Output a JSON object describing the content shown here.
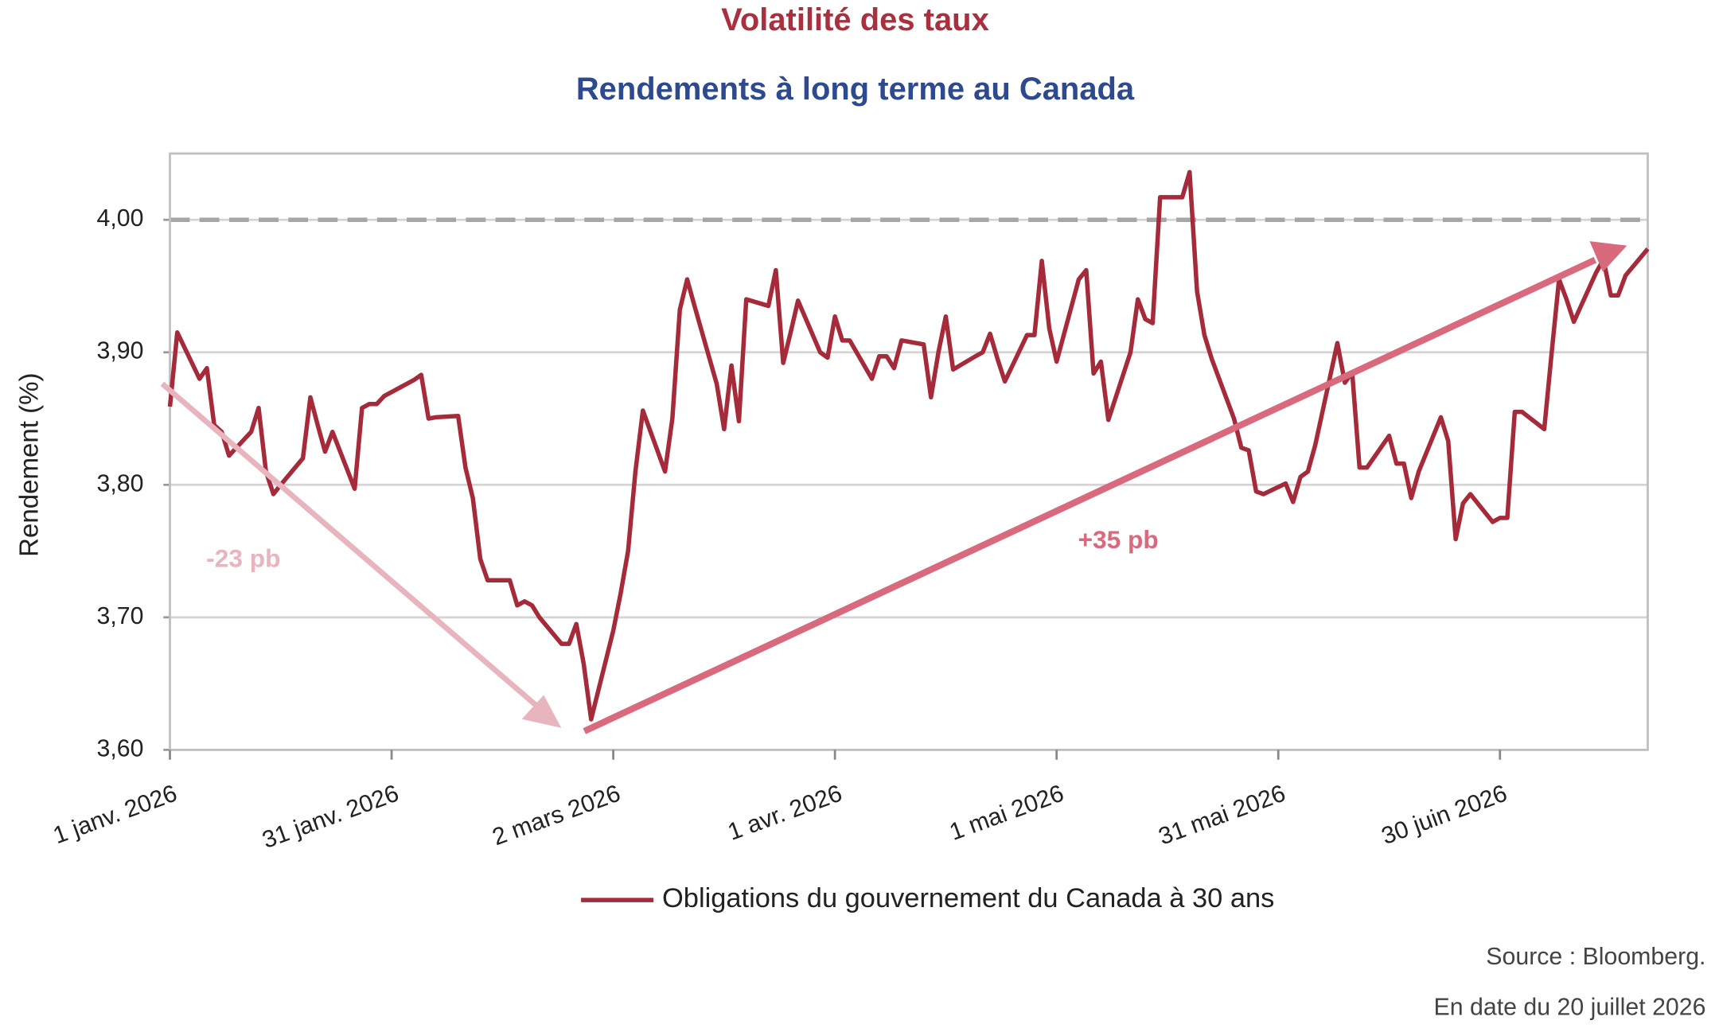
{
  "chart_data": {
    "type": "line",
    "title": "Volatilité des taux",
    "subtitle": "Rendements à long terme au Canada",
    "y_label": "Rendement (%)",
    "xlim": [
      "2026-01-01",
      "2026-07-20"
    ],
    "xticks": [
      {
        "value": "2026-01-01",
        "label": "1 janv. 2026"
      },
      {
        "value": "2026-01-31",
        "label": "31 janv. 2026"
      },
      {
        "value": "2026-03-02",
        "label": "2 mars 2026"
      },
      {
        "value": "2026-04-01",
        "label": "1 avr. 2026"
      },
      {
        "value": "2026-05-01",
        "label": "1 mai 2026"
      },
      {
        "value": "2026-05-31",
        "label": "31 mai 2026"
      },
      {
        "value": "2026-06-30",
        "label": "30 juin 2026"
      }
    ],
    "ylim": [
      3.6,
      4.05
    ],
    "yticks": [
      {
        "value": 3.6,
        "label": "3,60"
      },
      {
        "value": 3.7,
        "label": "3,70"
      },
      {
        "value": 3.8,
        "label": "3,80"
      },
      {
        "value": 3.9,
        "label": "3,90"
      },
      {
        "value": 4.0,
        "label": "4,00"
      }
    ],
    "grid": true,
    "reference_line": 4.0,
    "legend": "bottom",
    "x": [
      "2026-01-01",
      "2026-01-02",
      "2026-01-05",
      "2026-01-06",
      "2026-01-07",
      "2026-01-08",
      "2026-01-09",
      "2026-01-12",
      "2026-01-13",
      "2026-01-14",
      "2026-01-15",
      "2026-01-16",
      "2026-01-19",
      "2026-01-20",
      "2026-01-21",
      "2026-01-22",
      "2026-01-23",
      "2026-01-26",
      "2026-01-27",
      "2026-01-28",
      "2026-01-29",
      "2026-01-30",
      "2026-02-02",
      "2026-02-03",
      "2026-02-04",
      "2026-02-05",
      "2026-02-06",
      "2026-02-09",
      "2026-02-10",
      "2026-02-11",
      "2026-02-12",
      "2026-02-13",
      "2026-02-16",
      "2026-02-17",
      "2026-02-18",
      "2026-02-19",
      "2026-02-20",
      "2026-02-23",
      "2026-02-24",
      "2026-02-25",
      "2026-02-26",
      "2026-02-27",
      "2026-03-02",
      "2026-03-03",
      "2026-03-04",
      "2026-03-05",
      "2026-03-06",
      "2026-03-09",
      "2026-03-10",
      "2026-03-11",
      "2026-03-12",
      "2026-03-13",
      "2026-03-16",
      "2026-03-17",
      "2026-03-18",
      "2026-03-19",
      "2026-03-20",
      "2026-03-23",
      "2026-03-24",
      "2026-03-25",
      "2026-03-26",
      "2026-03-27",
      "2026-03-30",
      "2026-03-31",
      "2026-04-01",
      "2026-04-02",
      "2026-04-03",
      "2026-04-06",
      "2026-04-07",
      "2026-04-08",
      "2026-04-09",
      "2026-04-10",
      "2026-04-13",
      "2026-04-14",
      "2026-04-15",
      "2026-04-16",
      "2026-04-17",
      "2026-04-20",
      "2026-04-21",
      "2026-04-22",
      "2026-04-23",
      "2026-04-24",
      "2026-04-27",
      "2026-04-28",
      "2026-04-29",
      "2026-04-30",
      "2026-05-01",
      "2026-05-04",
      "2026-05-05",
      "2026-05-06",
      "2026-05-07",
      "2026-05-08",
      "2026-05-11",
      "2026-05-12",
      "2026-05-13",
      "2026-05-14",
      "2026-05-15",
      "2026-05-18",
      "2026-05-19",
      "2026-05-20",
      "2026-05-21",
      "2026-05-22",
      "2026-05-25",
      "2026-05-26",
      "2026-05-27",
      "2026-05-28",
      "2026-05-29",
      "2026-06-01",
      "2026-06-02",
      "2026-06-03",
      "2026-06-04",
      "2026-06-05",
      "2026-06-08",
      "2026-06-09",
      "2026-06-10",
      "2026-06-11",
      "2026-06-12",
      "2026-06-15",
      "2026-06-16",
      "2026-06-17",
      "2026-06-18",
      "2026-06-19",
      "2026-06-22",
      "2026-06-23",
      "2026-06-24",
      "2026-06-25",
      "2026-06-26",
      "2026-06-29",
      "2026-06-30",
      "2026-07-01",
      "2026-07-02",
      "2026-07-03",
      "2026-07-06",
      "2026-07-07",
      "2026-07-08",
      "2026-07-09",
      "2026-07-10",
      "2026-07-13",
      "2026-07-14",
      "2026-07-15",
      "2026-07-16",
      "2026-07-17",
      "2026-07-20"
    ],
    "series": [
      {
        "name": "Obligations du gouvernement du Canada à 30 ans",
        "color": "#a52a3a",
        "values": [
          3.859,
          3.915,
          3.88,
          3.888,
          3.845,
          3.84,
          3.822,
          3.84,
          3.858,
          3.81,
          3.793,
          3.8,
          3.82,
          3.866,
          3.845,
          3.825,
          3.84,
          3.797,
          3.858,
          3.861,
          3.861,
          3.867,
          3.876,
          3.879,
          3.883,
          3.85,
          3.851,
          3.852,
          3.813,
          3.79,
          3.744,
          3.728,
          3.728,
          3.709,
          3.712,
          3.709,
          3.7,
          3.68,
          3.68,
          3.695,
          3.665,
          3.623,
          3.69,
          3.718,
          3.75,
          3.81,
          3.856,
          3.81,
          3.85,
          3.932,
          3.955,
          3.935,
          3.876,
          3.842,
          3.89,
          3.848,
          3.94,
          3.935,
          3.962,
          3.892,
          3.915,
          3.939,
          3.9,
          3.896,
          3.927,
          3.909,
          3.909,
          3.88,
          3.897,
          3.897,
          3.888,
          3.909,
          3.906,
          3.866,
          3.9,
          3.927,
          3.887,
          3.897,
          3.9,
          3.914,
          3.895,
          3.878,
          3.913,
          3.913,
          3.969,
          3.918,
          3.893,
          3.955,
          3.962,
          3.884,
          3.893,
          3.849,
          3.9,
          3.94,
          3.925,
          3.922,
          4.017,
          4.017,
          4.036,
          3.946,
          3.913,
          3.895,
          3.85,
          3.828,
          3.826,
          3.795,
          3.793,
          3.801,
          3.787,
          3.806,
          3.81,
          3.83,
          3.907,
          3.877,
          3.885,
          3.813,
          3.813,
          3.837,
          3.816,
          3.816,
          3.79,
          3.81,
          3.851,
          3.833,
          3.759,
          3.786,
          3.793,
          3.772,
          3.775,
          3.775,
          3.855,
          3.855,
          3.842,
          3.9,
          3.955,
          3.94,
          3.923,
          3.96,
          3.97,
          3.943,
          3.943,
          3.958,
          3.978
        ]
      }
    ],
    "annotations": [
      "-23 pb",
      "+35 pb"
    ],
    "source": "Source : Bloomberg.",
    "date_note": "En date du 20 juillet 2026"
  }
}
